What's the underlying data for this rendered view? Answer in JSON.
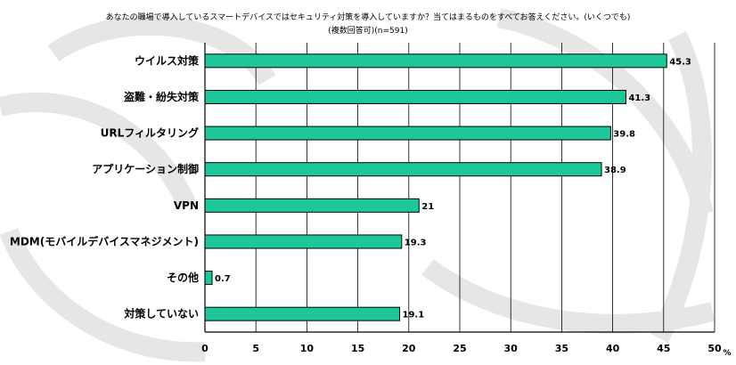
{
  "colors": {
    "bar_fill": "#1ec79a",
    "bar_stroke": "#000000",
    "grid": "#000000",
    "watermark": "#e6e6e6"
  },
  "watermark_icon": "globe-watermark-icon",
  "chart_data": {
    "type": "bar",
    "orientation": "horizontal",
    "title": "あなたの職場で導入しているスマートデバイスではセキュリティ対策を導入していますか？当てはまるものをすべてお答えください。(いくつでも)",
    "subtitle": "(複数回答可)(n=591)",
    "categories": [
      "ウイルス対策",
      "盗難・紛失対策",
      "URLフィルタリング",
      "アプリケーション制御",
      "VPN",
      "MDM(モバイルデバイスマネジメント)",
      "その他",
      "対策していない"
    ],
    "values": [
      45.3,
      41.3,
      39.8,
      38.9,
      21,
      19.3,
      0.7,
      19.1
    ],
    "value_labels": [
      "45.3",
      "41.3",
      "39.8",
      "38.9",
      "21",
      "19.3",
      "0.7",
      "19.1"
    ],
    "xlim": [
      0,
      50
    ],
    "xticks": [
      "0",
      "5",
      "10",
      "15",
      "20",
      "25",
      "30",
      "35",
      "40",
      "45",
      "50"
    ],
    "unit": "%",
    "grid": "vertical"
  }
}
